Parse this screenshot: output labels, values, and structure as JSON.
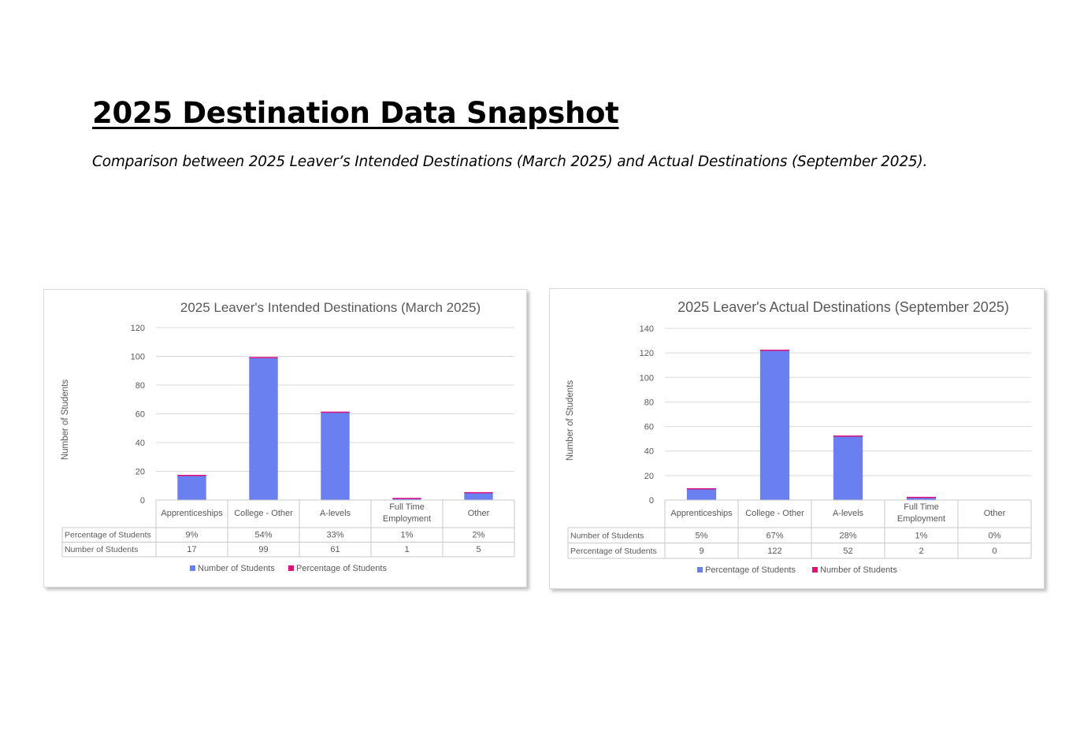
{
  "page": {
    "title": "2025 Destination Data Snapshot",
    "subtitle": "Comparison between 2025 Leaver’s Intended Destinations (March 2025) and Actual Destinations (September 2025)."
  },
  "colors": {
    "bar": "#6a7ff0",
    "bar_top": "#e0107a",
    "grid": "#d9d9d9",
    "table_border": "#c8c8c8",
    "text": "#595959"
  },
  "chart_data": [
    {
      "type": "bar",
      "title": "2025 Leaver's Intended Destinations (March 2025)",
      "ylabel": "Number of Students",
      "ylim": [
        0,
        120
      ],
      "yticks": [
        "0",
        "20",
        "40",
        "60",
        "80",
        "100",
        "120"
      ],
      "categories": [
        "Apprenticeships",
        "College - Other",
        "A-levels",
        "Full Time Employment",
        "Other"
      ],
      "series": [
        {
          "name": "Number of Students",
          "values": [
            17,
            99,
            61,
            1,
            5
          ]
        },
        {
          "name": "Percentage of Students",
          "values": [
            0.09,
            0.54,
            0.33,
            0.01,
            0.02
          ]
        }
      ],
      "table": [
        {
          "label": "Percentage of Students",
          "cells": [
            "9%",
            "54%",
            "33%",
            "1%",
            "2%"
          ]
        },
        {
          "label": "Number of Students",
          "cells": [
            "17",
            "99",
            "61",
            "1",
            "5"
          ]
        }
      ],
      "legend": [
        "Number of Students",
        "Percentage of Students"
      ],
      "legend_position": "bottom"
    },
    {
      "type": "bar",
      "title": "2025 Leaver's Actual Destinations (September 2025)",
      "ylabel": "Number of Students",
      "ylim": [
        0,
        140
      ],
      "yticks": [
        "0",
        "20",
        "40",
        "60",
        "80",
        "100",
        "120",
        "140"
      ],
      "categories": [
        "Apprenticeships",
        "College - Other",
        "A-levels",
        "Full Time Employment",
        "Other"
      ],
      "series": [
        {
          "name": "Percentage of Students",
          "values": [
            9,
            122,
            52,
            2,
            0
          ]
        },
        {
          "name": "Number of Students",
          "values": [
            0.05,
            0.67,
            0.28,
            0.01,
            0
          ]
        }
      ],
      "table": [
        {
          "label": "Number of Students",
          "cells": [
            "5%",
            "67%",
            "28%",
            "1%",
            "0%"
          ]
        },
        {
          "label": "Percentage of Students",
          "cells": [
            "9",
            "122",
            "52",
            "2",
            "0"
          ]
        }
      ],
      "legend": [
        "Percentage of Students",
        "Number of Students"
      ],
      "legend_position": "bottom"
    }
  ]
}
